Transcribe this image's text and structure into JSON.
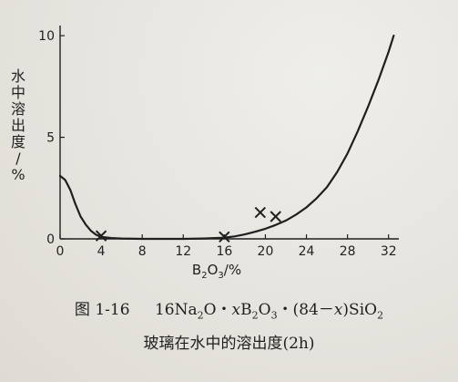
{
  "chart_data": {
    "type": "line",
    "title": "",
    "xlabel": "B2O3/%",
    "ylabel": "水中溶出度/%",
    "xlim": [
      0,
      33
    ],
    "ylim": [
      0,
      10.5
    ],
    "x_ticks": [
      0,
      4,
      8,
      12,
      16,
      20,
      24,
      28,
      32
    ],
    "y_ticks": [
      0,
      5,
      10
    ],
    "grid": false,
    "series": [
      {
        "type": "line",
        "x": [
          0,
          0.5,
          1,
          1.5,
          2,
          2.5,
          3,
          3.5,
          4,
          5,
          6,
          8,
          10,
          12,
          14,
          16,
          17,
          18,
          19,
          20,
          21,
          22,
          23,
          24,
          25,
          26,
          27,
          28,
          29,
          30,
          31,
          32,
          32.5
        ],
        "y": [
          3.1,
          2.9,
          2.4,
          1.7,
          1.1,
          0.7,
          0.4,
          0.2,
          0.1,
          0.04,
          0.02,
          0.0,
          0.0,
          0.0,
          0.02,
          0.06,
          0.12,
          0.22,
          0.35,
          0.5,
          0.68,
          0.9,
          1.2,
          1.55,
          2.0,
          2.55,
          3.3,
          4.2,
          5.3,
          6.5,
          7.8,
          9.2,
          10.0
        ]
      },
      {
        "type": "scatter",
        "marker": "x",
        "x": [
          4,
          16,
          19.5,
          21
        ],
        "y": [
          0.15,
          0.1,
          1.3,
          1.1
        ]
      }
    ]
  },
  "caption": {
    "figure_number": "图 1-16",
    "formula_parts": [
      "16Na",
      "2",
      "O・",
      "x",
      "B",
      "2",
      "O",
      "3",
      "・(84－",
      "x",
      ")SiO",
      "2"
    ],
    "line2": "玻璃在水中的溶出度(2h)"
  },
  "colors": {
    "ink": "#1f1f1f",
    "background": "#e6e4de"
  }
}
